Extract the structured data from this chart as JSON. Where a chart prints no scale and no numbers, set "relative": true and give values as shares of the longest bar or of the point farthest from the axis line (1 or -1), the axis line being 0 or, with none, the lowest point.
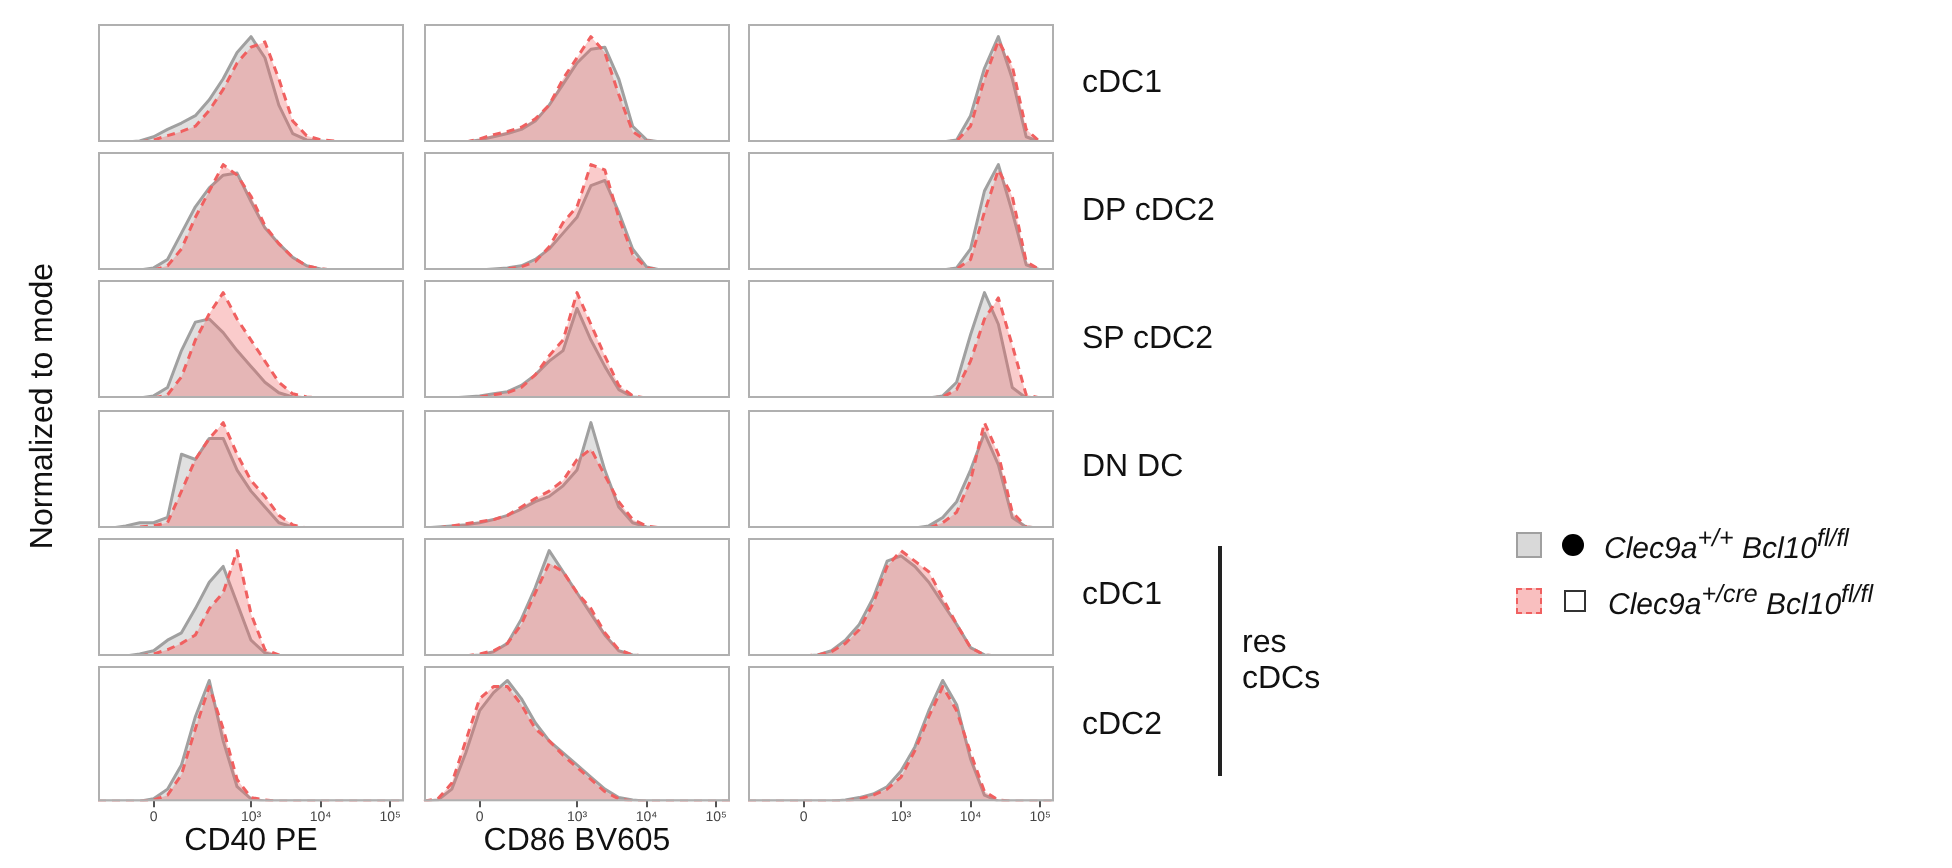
{
  "chart_data": [
    {
      "type": "area",
      "relative": true,
      "ylabel": "Normalized to mode",
      "legend": "right",
      "categories": [
        null,
        null,
        null,
        null,
        null,
        null,
        null,
        null,
        null,
        null,
        null,
        null,
        null,
        null,
        null,
        null,
        null,
        null,
        null,
        null,
        null,
        null,
        null
      ],
      "series": [
        {
          "name": "Clec9a$^{+/+}$ Bcl10$^{fl/fl}$",
          "color": "#a0a0a0",
          "line_style": "solid",
          "values": [
            0,
            0,
            0,
            0.01,
            0.05,
            0.12,
            0.18,
            0.25,
            0.4,
            0.6,
            0.85,
            1,
            0.8,
            0.35,
            0.08,
            0.02,
            0.01,
            0,
            0,
            0,
            0,
            0,
            0
          ]
        },
        {
          "name": "Clec9a$^{+/cre}$ Bcl10$^{fl/fl}$",
          "color": "#f06060",
          "line_style": "dashed",
          "values": [
            0,
            0,
            0,
            0,
            0.02,
            0.06,
            0.1,
            0.15,
            0.3,
            0.5,
            0.75,
            0.9,
            0.95,
            0.6,
            0.2,
            0.06,
            0.02,
            0.01,
            0,
            0,
            0,
            0,
            0
          ]
        }
      ]
    },
    {
      "type": "area",
      "relative": true,
      "categories": [
        null,
        null,
        null,
        null,
        null,
        null,
        null,
        null,
        null,
        null,
        null,
        null,
        null,
        null,
        null,
        null,
        null,
        null,
        null,
        null,
        null,
        null,
        null
      ],
      "series": [
        {
          "color": "#a0a0a0",
          "line_style": "solid",
          "values": [
            0,
            0,
            0,
            0,
            0.02,
            0.05,
            0.08,
            0.12,
            0.2,
            0.35,
            0.55,
            0.75,
            0.88,
            0.9,
            0.6,
            0.15,
            0.02,
            0,
            0,
            0,
            0,
            0,
            0
          ]
        },
        {
          "color": "#f06060",
          "line_style": "dashed",
          "values": [
            0,
            0,
            0,
            0,
            0.03,
            0.07,
            0.1,
            0.14,
            0.22,
            0.35,
            0.6,
            0.8,
            1,
            0.85,
            0.45,
            0.1,
            0.01,
            0,
            0,
            0,
            0,
            0,
            0
          ]
        }
      ]
    },
    {
      "type": "area",
      "relative": true,
      "annotations": [
        "cDC1"
      ],
      "categories": [
        null,
        null,
        null,
        null,
        null,
        null,
        null,
        null,
        null,
        null,
        null,
        null,
        null,
        null,
        null,
        null,
        null,
        null,
        null,
        null,
        null,
        null,
        null
      ],
      "series": [
        {
          "color": "#a0a0a0",
          "line_style": "solid",
          "values": [
            0,
            0,
            0,
            0,
            0,
            0,
            0,
            0,
            0,
            0,
            0,
            0,
            0,
            0,
            0,
            0.02,
            0.25,
            0.7,
            1,
            0.6,
            0.05,
            0,
            0
          ]
        },
        {
          "color": "#f06060",
          "line_style": "dashed",
          "values": [
            0,
            0,
            0,
            0,
            0,
            0,
            0,
            0,
            0,
            0,
            0,
            0,
            0,
            0,
            0,
            0.01,
            0.15,
            0.6,
            0.96,
            0.72,
            0.12,
            0,
            0
          ]
        }
      ]
    },
    {
      "type": "area",
      "relative": true,
      "categories": [
        null,
        null,
        null,
        null,
        null,
        null,
        null,
        null,
        null,
        null,
        null,
        null,
        null,
        null,
        null,
        null,
        null,
        null,
        null,
        null,
        null,
        null,
        null
      ],
      "series": [
        {
          "color": "#a0a0a0",
          "line_style": "solid",
          "values": [
            0,
            0,
            0,
            0,
            0.02,
            0.1,
            0.35,
            0.6,
            0.78,
            0.9,
            0.92,
            0.65,
            0.4,
            0.25,
            0.12,
            0.04,
            0.01,
            0,
            0,
            0,
            0,
            0,
            0
          ]
        },
        {
          "color": "#f06060",
          "line_style": "dashed",
          "values": [
            0,
            0,
            0,
            0,
            0,
            0.04,
            0.2,
            0.5,
            0.75,
            1,
            0.9,
            0.7,
            0.42,
            0.25,
            0.12,
            0.04,
            0.01,
            0,
            0,
            0,
            0,
            0,
            0
          ]
        }
      ]
    },
    {
      "type": "area",
      "relative": true,
      "categories": [
        null,
        null,
        null,
        null,
        null,
        null,
        null,
        null,
        null,
        null,
        null,
        null,
        null,
        null,
        null,
        null,
        null,
        null,
        null,
        null,
        null,
        null,
        null
      ],
      "series": [
        {
          "color": "#a0a0a0",
          "line_style": "solid",
          "values": [
            0,
            0,
            0,
            0,
            0,
            0.01,
            0.02,
            0.04,
            0.1,
            0.2,
            0.35,
            0.5,
            0.8,
            0.85,
            0.55,
            0.2,
            0.03,
            0,
            0,
            0,
            0,
            0,
            0
          ]
        },
        {
          "color": "#f06060",
          "line_style": "dashed",
          "values": [
            0,
            0,
            0,
            0,
            0,
            0,
            0.01,
            0.03,
            0.08,
            0.22,
            0.45,
            0.6,
            1,
            0.95,
            0.5,
            0.15,
            0.02,
            0,
            0,
            0,
            0,
            0,
            0
          ]
        }
      ]
    },
    {
      "type": "area",
      "relative": true,
      "annotations": [
        "DP cDC2"
      ],
      "categories": [
        null,
        null,
        null,
        null,
        null,
        null,
        null,
        null,
        null,
        null,
        null,
        null,
        null,
        null,
        null,
        null,
        null,
        null,
        null,
        null,
        null,
        null,
        null
      ],
      "series": [
        {
          "color": "#a0a0a0",
          "line_style": "solid",
          "values": [
            0,
            0,
            0,
            0,
            0,
            0,
            0,
            0,
            0,
            0,
            0,
            0,
            0,
            0,
            0,
            0.02,
            0.2,
            0.75,
            1,
            0.55,
            0.05,
            0,
            0
          ]
        },
        {
          "color": "#f06060",
          "line_style": "dashed",
          "values": [
            0,
            0,
            0,
            0,
            0,
            0,
            0,
            0,
            0,
            0,
            0,
            0,
            0,
            0,
            0,
            0.01,
            0.1,
            0.55,
            0.95,
            0.7,
            0.08,
            0,
            0
          ]
        }
      ]
    },
    {
      "type": "area",
      "relative": true,
      "categories": [
        null,
        null,
        null,
        null,
        null,
        null,
        null,
        null,
        null,
        null,
        null,
        null,
        null,
        null,
        null,
        null,
        null,
        null,
        null,
        null,
        null,
        null,
        null
      ],
      "series": [
        {
          "color": "#a0a0a0",
          "line_style": "solid",
          "values": [
            0,
            0,
            0,
            0,
            0.02,
            0.1,
            0.45,
            0.72,
            0.75,
            0.62,
            0.45,
            0.3,
            0.15,
            0.05,
            0.01,
            0,
            0,
            0,
            0,
            0,
            0,
            0,
            0
          ]
        },
        {
          "color": "#f06060",
          "line_style": "dashed",
          "values": [
            0,
            0,
            0,
            0,
            0,
            0.03,
            0.2,
            0.55,
            0.8,
            1,
            0.75,
            0.55,
            0.35,
            0.15,
            0.04,
            0.01,
            0,
            0,
            0,
            0,
            0,
            0,
            0
          ]
        }
      ]
    },
    {
      "type": "area",
      "relative": true,
      "categories": [
        null,
        null,
        null,
        null,
        null,
        null,
        null,
        null,
        null,
        null,
        null,
        null,
        null,
        null,
        null,
        null,
        null,
        null,
        null,
        null,
        null,
        null,
        null
      ],
      "series": [
        {
          "color": "#a0a0a0",
          "line_style": "solid",
          "values": [
            0,
            0,
            0,
            0.01,
            0.02,
            0.04,
            0.06,
            0.12,
            0.22,
            0.35,
            0.45,
            0.85,
            0.55,
            0.3,
            0.08,
            0.01,
            0,
            0,
            0,
            0,
            0,
            0,
            0
          ]
        },
        {
          "color": "#f06060",
          "line_style": "dashed",
          "values": [
            0,
            0,
            0,
            0,
            0.01,
            0.03,
            0.05,
            0.1,
            0.22,
            0.4,
            0.55,
            1,
            0.7,
            0.4,
            0.12,
            0.02,
            0,
            0,
            0,
            0,
            0,
            0,
            0
          ]
        }
      ]
    },
    {
      "type": "area",
      "relative": true,
      "annotations": [
        "SP cDC2"
      ],
      "categories": [
        null,
        null,
        null,
        null,
        null,
        null,
        null,
        null,
        null,
        null,
        null,
        null,
        null,
        null,
        null,
        null,
        null,
        null,
        null,
        null,
        null,
        null,
        null
      ],
      "series": [
        {
          "color": "#a0a0a0",
          "line_style": "solid",
          "values": [
            0,
            0,
            0,
            0,
            0,
            0,
            0,
            0,
            0,
            0,
            0,
            0,
            0,
            0,
            0.02,
            0.15,
            0.6,
            1,
            0.7,
            0.1,
            0,
            0,
            0
          ]
        },
        {
          "color": "#f06060",
          "line_style": "dashed",
          "values": [
            0,
            0,
            0,
            0,
            0,
            0,
            0,
            0,
            0,
            0,
            0,
            0,
            0,
            0,
            0.01,
            0.08,
            0.35,
            0.75,
            0.95,
            0.5,
            0.03,
            0,
            0
          ]
        }
      ]
    },
    {
      "type": "area",
      "relative": true,
      "categories": [
        null,
        null,
        null,
        null,
        null,
        null,
        null,
        null,
        null,
        null,
        null,
        null,
        null,
        null,
        null,
        null,
        null,
        null,
        null,
        null,
        null,
        null,
        null
      ],
      "series": [
        {
          "color": "#a0a0a0",
          "line_style": "solid",
          "values": [
            0,
            0,
            0.02,
            0.05,
            0.05,
            0.1,
            0.7,
            0.65,
            0.85,
            0.85,
            0.55,
            0.35,
            0.2,
            0.05,
            0.01,
            0,
            0,
            0,
            0,
            0,
            0,
            0,
            0
          ]
        },
        {
          "color": "#f06060",
          "line_style": "dashed",
          "values": [
            0,
            0,
            0,
            0.01,
            0.02,
            0.05,
            0.35,
            0.65,
            0.85,
            1,
            0.7,
            0.45,
            0.3,
            0.12,
            0.03,
            0,
            0,
            0,
            0,
            0,
            0,
            0,
            0
          ]
        }
      ]
    },
    {
      "type": "area",
      "relative": true,
      "categories": [
        null,
        null,
        null,
        null,
        null,
        null,
        null,
        null,
        null,
        null,
        null,
        null,
        null,
        null,
        null,
        null,
        null,
        null,
        null,
        null,
        null,
        null,
        null
      ],
      "series": [
        {
          "color": "#a0a0a0",
          "line_style": "solid",
          "values": [
            0,
            0.01,
            0.02,
            0.03,
            0.05,
            0.08,
            0.12,
            0.18,
            0.25,
            0.3,
            0.4,
            0.55,
            1,
            0.55,
            0.2,
            0.05,
            0.01,
            0,
            0,
            0,
            0,
            0,
            0
          ]
        },
        {
          "color": "#f06060",
          "line_style": "dashed",
          "values": [
            0,
            0,
            0.02,
            0.04,
            0.06,
            0.08,
            0.12,
            0.2,
            0.28,
            0.35,
            0.45,
            0.65,
            0.75,
            0.5,
            0.25,
            0.08,
            0.02,
            0,
            0,
            0,
            0,
            0,
            0
          ]
        }
      ]
    },
    {
      "type": "area",
      "relative": true,
      "annotations": [
        "DN DC"
      ],
      "categories": [
        null,
        null,
        null,
        null,
        null,
        null,
        null,
        null,
        null,
        null,
        null,
        null,
        null,
        null,
        null,
        null,
        null,
        null,
        null,
        null,
        null,
        null,
        null
      ],
      "series": [
        {
          "color": "#a0a0a0",
          "line_style": "solid",
          "values": [
            0,
            0,
            0,
            0,
            0,
            0,
            0,
            0,
            0,
            0,
            0,
            0,
            0,
            0.02,
            0.1,
            0.25,
            0.55,
            0.9,
            0.6,
            0.1,
            0.01,
            0,
            0
          ]
        },
        {
          "color": "#f06060",
          "line_style": "dashed",
          "values": [
            0,
            0,
            0,
            0,
            0,
            0,
            0,
            0,
            0,
            0,
            0,
            0,
            0,
            0,
            0.05,
            0.15,
            0.45,
            1,
            0.7,
            0.15,
            0.01,
            0,
            0
          ]
        }
      ]
    },
    {
      "type": "area",
      "relative": true,
      "categories": [
        null,
        null,
        null,
        null,
        null,
        null,
        null,
        null,
        null,
        null,
        null,
        null,
        null,
        null,
        null,
        null,
        null,
        null,
        null,
        null,
        null,
        null,
        null
      ],
      "series": [
        {
          "color": "#a0a0a0",
          "line_style": "solid",
          "values": [
            0,
            0,
            0,
            0.02,
            0.05,
            0.15,
            0.22,
            0.45,
            0.7,
            0.85,
            0.5,
            0.15,
            0.03,
            0,
            0,
            0,
            0,
            0,
            0,
            0,
            0,
            0,
            0
          ]
        },
        {
          "color": "#f06060",
          "line_style": "dashed",
          "values": [
            0,
            0,
            0,
            0,
            0.02,
            0.06,
            0.12,
            0.2,
            0.45,
            0.6,
            1,
            0.4,
            0.06,
            0.01,
            0,
            0,
            0,
            0,
            0,
            0,
            0,
            0,
            0
          ]
        }
      ]
    },
    {
      "type": "area",
      "relative": true,
      "categories": [
        null,
        null,
        null,
        null,
        null,
        null,
        null,
        null,
        null,
        null,
        null,
        null,
        null,
        null,
        null,
        null,
        null,
        null,
        null,
        null,
        null,
        null,
        null
      ],
      "series": [
        {
          "color": "#a0a0a0",
          "line_style": "solid",
          "values": [
            0,
            0,
            0,
            0,
            0.01,
            0.04,
            0.12,
            0.35,
            0.65,
            1,
            0.8,
            0.6,
            0.4,
            0.2,
            0.05,
            0.01,
            0,
            0,
            0,
            0,
            0,
            0,
            0
          ]
        },
        {
          "color": "#f06060",
          "line_style": "dashed",
          "values": [
            0,
            0,
            0,
            0,
            0.02,
            0.05,
            0.12,
            0.3,
            0.6,
            0.88,
            0.8,
            0.6,
            0.45,
            0.22,
            0.06,
            0.01,
            0,
            0,
            0,
            0,
            0,
            0,
            0
          ]
        }
      ]
    },
    {
      "type": "area",
      "relative": true,
      "annotations": [
        "cDC1",
        "res cDCs"
      ],
      "categories": [
        null,
        null,
        null,
        null,
        null,
        null,
        null,
        null,
        null,
        null,
        null,
        null,
        null,
        null,
        null,
        null,
        null,
        null,
        null,
        null,
        null,
        null,
        null
      ],
      "series": [
        {
          "color": "#a0a0a0",
          "line_style": "solid",
          "values": [
            0,
            0,
            0,
            0,
            0,
            0.01,
            0.05,
            0.15,
            0.3,
            0.55,
            0.9,
            0.95,
            0.85,
            0.7,
            0.5,
            0.3,
            0.08,
            0.01,
            0,
            0,
            0,
            0,
            0
          ]
        },
        {
          "color": "#f06060",
          "line_style": "dashed",
          "values": [
            0,
            0,
            0,
            0,
            0,
            0.01,
            0.04,
            0.12,
            0.25,
            0.5,
            0.85,
            1,
            0.9,
            0.8,
            0.55,
            0.3,
            0.08,
            0.01,
            0,
            0,
            0,
            0,
            0
          ]
        }
      ]
    },
    {
      "type": "area",
      "relative": true,
      "xlabel": "CD40 PE",
      "categories": [
        null,
        null,
        null,
        null,
        "0",
        null,
        null,
        null,
        null,
        null,
        null,
        "10³",
        null,
        null,
        null,
        null,
        "10⁴",
        null,
        null,
        null,
        null,
        "10⁵",
        null
      ],
      "series": [
        {
          "color": "#a0a0a0",
          "line_style": "solid",
          "values": [
            0,
            0,
            0,
            0,
            0.02,
            0.1,
            0.3,
            0.7,
            1,
            0.5,
            0.12,
            0.02,
            0,
            0,
            0,
            0,
            0,
            0,
            0,
            0,
            0,
            0,
            0
          ]
        },
        {
          "color": "#f06060",
          "line_style": "dashed",
          "values": [
            0,
            0,
            0,
            0,
            0.01,
            0.05,
            0.22,
            0.6,
            0.95,
            0.6,
            0.18,
            0.03,
            0.01,
            0,
            0,
            0,
            0,
            0,
            0,
            0,
            0,
            0,
            0
          ]
        }
      ]
    },
    {
      "type": "area",
      "relative": true,
      "xlabel": "CD86 BV605",
      "categories": [
        null,
        null,
        null,
        null,
        "0",
        null,
        null,
        null,
        null,
        null,
        null,
        "10³",
        null,
        null,
        null,
        null,
        "10⁴",
        null,
        null,
        null,
        null,
        "10⁵",
        null
      ],
      "series": [
        {
          "color": "#a0a0a0",
          "line_style": "solid",
          "values": [
            0,
            0.01,
            0.1,
            0.4,
            0.75,
            0.9,
            1,
            0.85,
            0.65,
            0.5,
            0.4,
            0.3,
            0.2,
            0.1,
            0.03,
            0.01,
            0,
            0,
            0,
            0,
            0,
            0,
            0
          ]
        },
        {
          "color": "#f06060",
          "line_style": "dashed",
          "values": [
            0,
            0.02,
            0.15,
            0.5,
            0.85,
            0.95,
            0.95,
            0.8,
            0.6,
            0.5,
            0.38,
            0.28,
            0.18,
            0.08,
            0.02,
            0,
            0,
            0,
            0,
            0,
            0,
            0,
            0
          ]
        }
      ]
    },
    {
      "type": "area",
      "relative": true,
      "annotations": [
        "cDC2"
      ],
      "categories": [
        null,
        null,
        null,
        null,
        "0",
        null,
        null,
        null,
        null,
        null,
        null,
        "10³",
        null,
        null,
        null,
        null,
        "10⁴",
        null,
        null,
        null,
        null,
        "10⁵",
        null
      ],
      "series": [
        {
          "color": "#a0a0a0",
          "line_style": "solid",
          "values": [
            0,
            0,
            0,
            0,
            0,
            0,
            0,
            0.01,
            0.03,
            0.06,
            0.12,
            0.25,
            0.45,
            0.75,
            1,
            0.8,
            0.35,
            0.05,
            0,
            0,
            0,
            0,
            0
          ]
        },
        {
          "color": "#f06060",
          "line_style": "dashed",
          "values": [
            0,
            0,
            0,
            0,
            0,
            0,
            0,
            0,
            0.02,
            0.05,
            0.1,
            0.2,
            0.42,
            0.7,
            0.95,
            0.75,
            0.4,
            0.08,
            0.01,
            0,
            0,
            0,
            0
          ]
        }
      ]
    }
  ]
}
